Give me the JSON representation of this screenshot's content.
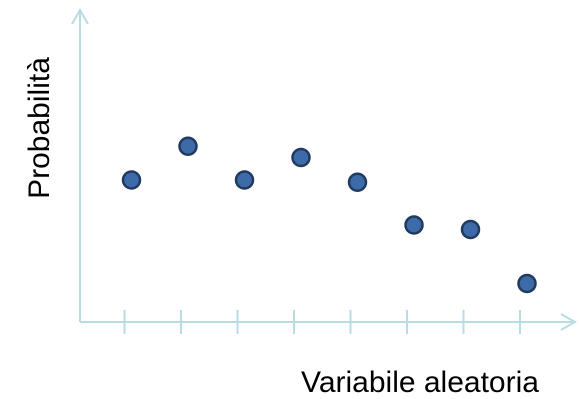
{
  "chart_data": {
    "type": "scatter",
    "title": "",
    "xlabel": "Variabile aleatoria",
    "ylabel": "Probabilità",
    "x": [
      1,
      2,
      3,
      4,
      5,
      6,
      7,
      8
    ],
    "y": [
      6.3,
      7.8,
      6.3,
      7.3,
      6.2,
      4.3,
      4.1,
      1.7
    ],
    "xlim": [
      0,
      9
    ],
    "ylim": [
      -0.5,
      11
    ],
    "tick_count": 8,
    "grid": false,
    "legend": "none",
    "colors": {
      "axis": "#b7dde3",
      "marker_fill": "#3d6aa8",
      "marker_stroke": "#223a5e",
      "text": "#000000"
    }
  }
}
